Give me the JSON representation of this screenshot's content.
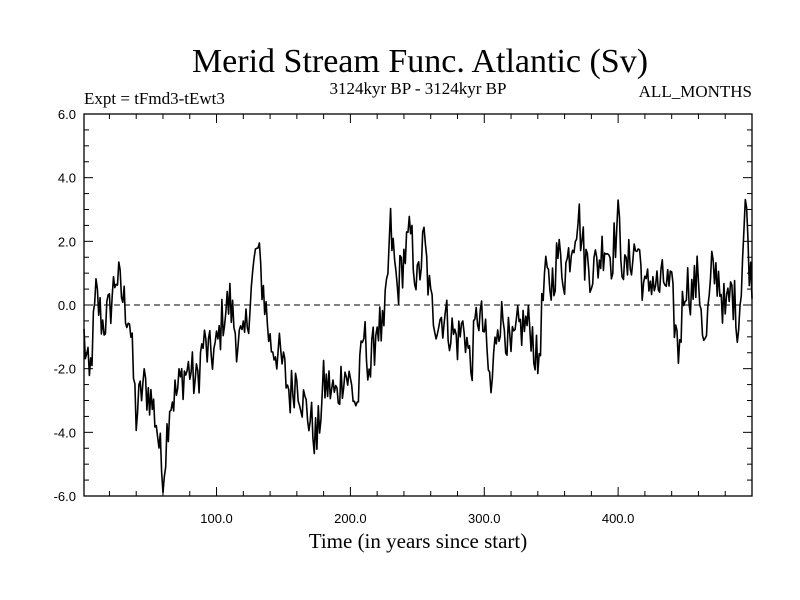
{
  "chart_data": {
    "type": "line",
    "title": "Merid Stream Func. Atlantic (Sv)",
    "subtitle_left": "Expt = tFmd3-tEwt3",
    "subtitle_center": "3124kyr BP - 3124kyr BP",
    "subtitle_right": "ALL_MONTHS",
    "xlabel": "Time (in years since start)",
    "ylabel": "",
    "xlim": [
      1,
      500
    ],
    "ylim": [
      -6.0,
      6.0
    ],
    "x_ticks": [
      100.0,
      200.0,
      300.0,
      400.0
    ],
    "x_tick_labels": [
      "100.0",
      "200.0",
      "300.0",
      "400.0"
    ],
    "y_ticks": [
      -6.0,
      -4.0,
      -2.0,
      0.0,
      2.0,
      4.0,
      6.0
    ],
    "y_tick_labels": [
      "-6.0",
      "-4.0",
      "-2.0",
      "0.0",
      "2.0",
      "4.0",
      "6.0"
    ],
    "reference_line": {
      "y": 0.0,
      "style": "dashed"
    },
    "grid": false,
    "series": [
      {
        "name": "Merid Stream Func. Atlantic",
        "x": [
          1,
          5,
          10,
          15,
          20,
          25,
          30,
          35,
          40,
          45,
          50,
          55,
          60,
          65,
          70,
          75,
          80,
          85,
          90,
          95,
          100,
          105,
          110,
          115,
          120,
          125,
          130,
          135,
          140,
          145,
          150,
          155,
          160,
          165,
          170,
          175,
          180,
          185,
          190,
          195,
          200,
          205,
          210,
          215,
          220,
          225,
          230,
          235,
          240,
          245,
          250,
          255,
          260,
          265,
          270,
          275,
          280,
          285,
          290,
          295,
          300,
          305,
          310,
          315,
          320,
          325,
          330,
          335,
          340,
          345,
          350,
          355,
          360,
          365,
          370,
          375,
          380,
          385,
          390,
          395,
          400,
          405,
          410,
          415,
          420,
          425,
          430,
          435,
          440,
          445,
          450,
          455,
          460,
          465,
          470,
          475,
          480,
          485,
          490,
          495,
          500
        ],
        "values": [
          -1.0,
          -2.5,
          0.3,
          -0.6,
          -0.2,
          1.0,
          0.2,
          -0.4,
          -3.5,
          -2.5,
          -2.8,
          -3.6,
          -5.5,
          -3.0,
          -2.8,
          -2.2,
          -2.0,
          -2.5,
          -1.2,
          -1.6,
          -1.4,
          -0.3,
          0.1,
          -1.0,
          -1.3,
          0.2,
          1.8,
          0.5,
          -1.2,
          -1.4,
          -2.0,
          -2.8,
          -2.2,
          -3.1,
          -3.6,
          -4.3,
          -2.5,
          -2.6,
          -2.9,
          -2.0,
          -2.5,
          -3.2,
          -0.9,
          -2.1,
          -0.5,
          -1.0,
          2.4,
          0.5,
          1.5,
          2.2,
          0.6,
          2.0,
          0.0,
          -0.5,
          -0.3,
          -0.8,
          -1.1,
          -0.6,
          -2.0,
          -0.2,
          -0.8,
          -2.8,
          -0.4,
          -0.5,
          -1.6,
          -0.8,
          -0.6,
          -0.7,
          -2.0,
          0.8,
          0.6,
          1.6,
          1.0,
          1.9,
          2.9,
          1.5,
          1.1,
          1.3,
          2.0,
          1.5,
          2.6,
          0.9,
          1.6,
          1.8,
          0.3,
          0.9,
          0.5,
          0.8,
          0.3,
          -1.5,
          0.8,
          0.4,
          0.9,
          -1.4,
          1.0,
          0.9,
          -0.3,
          0.5,
          -0.6,
          3.2,
          0.2
        ]
      }
    ]
  }
}
